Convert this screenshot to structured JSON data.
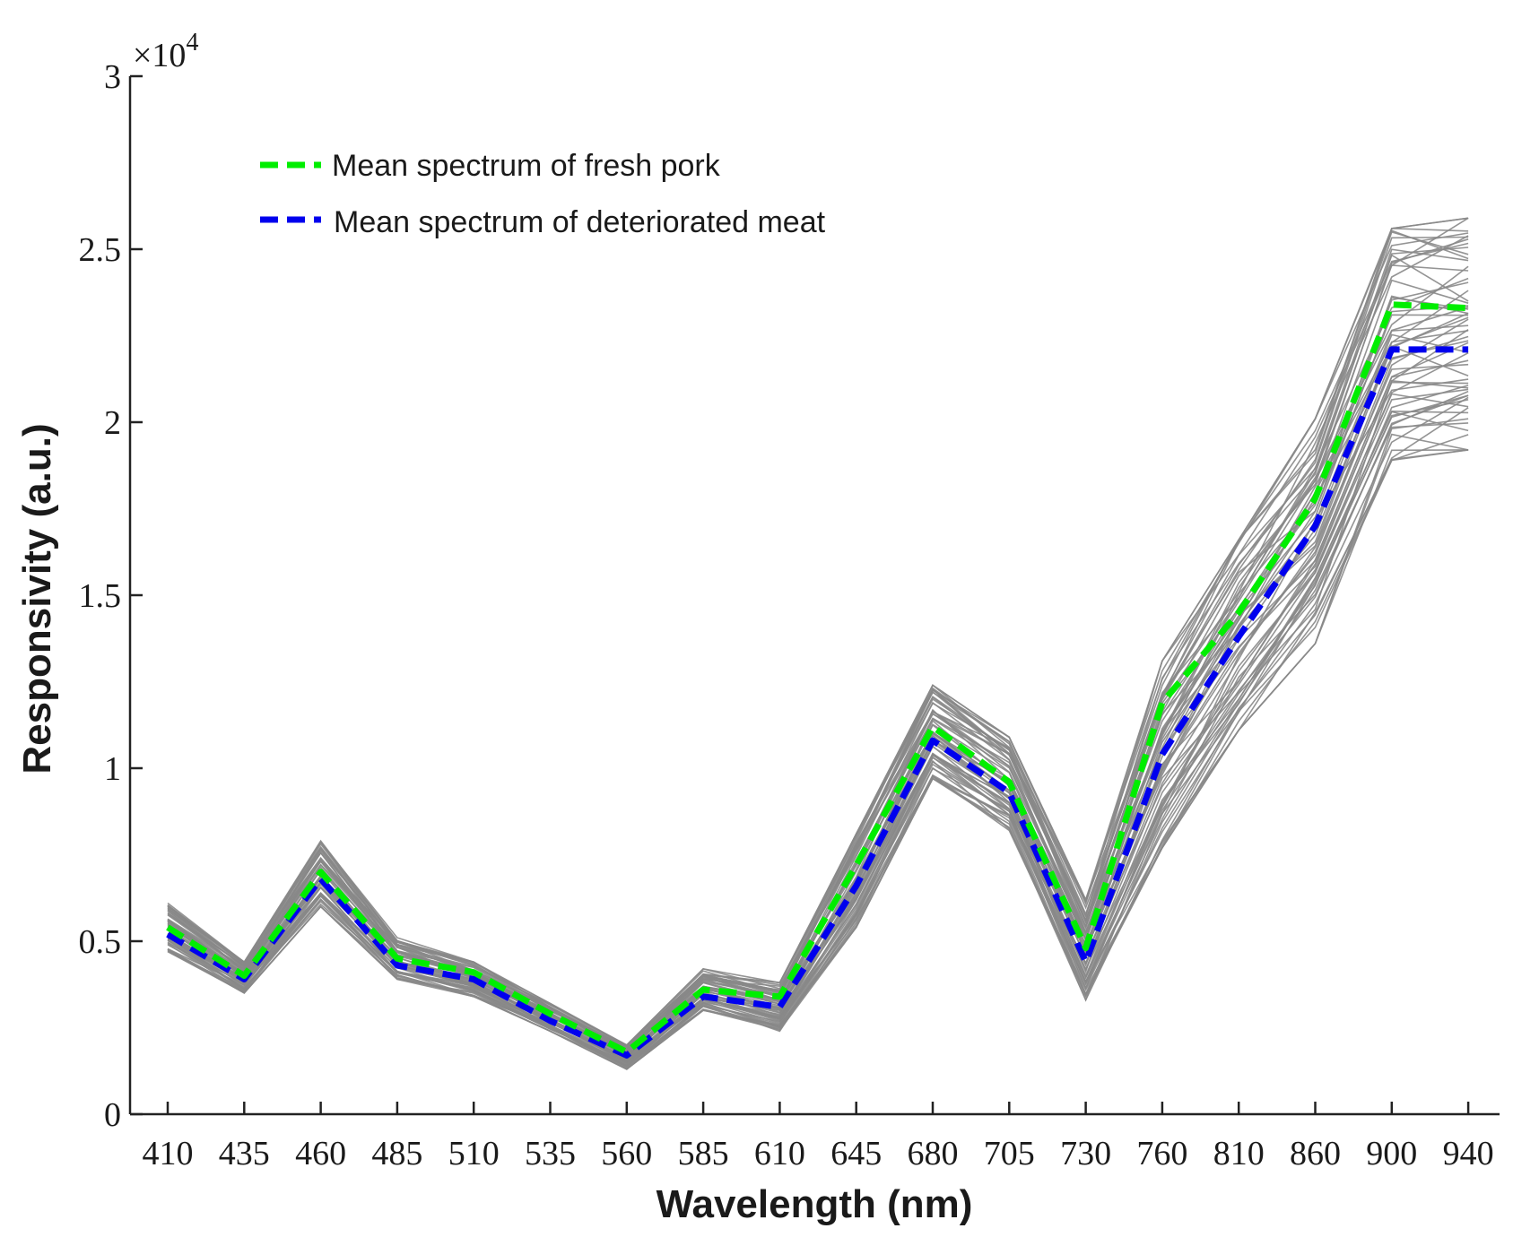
{
  "chart_data": {
    "type": "line",
    "title": "",
    "xlabel": "Wavelength (nm)",
    "ylabel": "Responsivity (a.u.)",
    "y_exponent_label": {
      "base": "×10",
      "power": "4"
    },
    "ylim": [
      0,
      3
    ],
    "yticks": [
      0,
      0.5,
      1,
      1.5,
      2,
      2.5,
      3
    ],
    "ytick_labels": [
      "0",
      "0.5",
      "1",
      "1.5",
      "2",
      "2.5",
      "3"
    ],
    "categories": [
      "410",
      "435",
      "460",
      "485",
      "510",
      "535",
      "560",
      "585",
      "610",
      "645",
      "680",
      "705",
      "730",
      "760",
      "810",
      "860",
      "900",
      "940"
    ],
    "grid": false,
    "legend_position": "top-left",
    "series": [
      {
        "name": "Mean spectrum of fresh pork",
        "style": "dashed",
        "color": "#00ee00",
        "values": [
          0.54,
          0.4,
          0.7,
          0.45,
          0.41,
          0.29,
          0.18,
          0.36,
          0.34,
          0.72,
          1.12,
          0.96,
          0.48,
          1.19,
          1.45,
          1.78,
          2.34,
          2.33
        ]
      },
      {
        "name": "Mean spectrum of deteriorated meat",
        "style": "dashed",
        "color": "#0000ee",
        "values": [
          0.52,
          0.39,
          0.68,
          0.43,
          0.39,
          0.27,
          0.17,
          0.34,
          0.31,
          0.66,
          1.08,
          0.93,
          0.44,
          1.04,
          1.38,
          1.7,
          2.21,
          2.21
        ]
      }
    ],
    "background_spectra": {
      "name": "individual sample spectra",
      "color": "#888888",
      "lower_envelope": [
        0.47,
        0.35,
        0.6,
        0.39,
        0.34,
        0.24,
        0.13,
        0.3,
        0.24,
        0.54,
        0.97,
        0.82,
        0.33,
        0.77,
        1.11,
        1.36,
        1.89,
        1.92
      ],
      "upper_envelope": [
        0.61,
        0.44,
        0.79,
        0.51,
        0.44,
        0.32,
        0.2,
        0.42,
        0.38,
        0.81,
        1.24,
        1.09,
        0.62,
        1.31,
        1.66,
        2.01,
        2.56,
        2.59
      ]
    }
  }
}
